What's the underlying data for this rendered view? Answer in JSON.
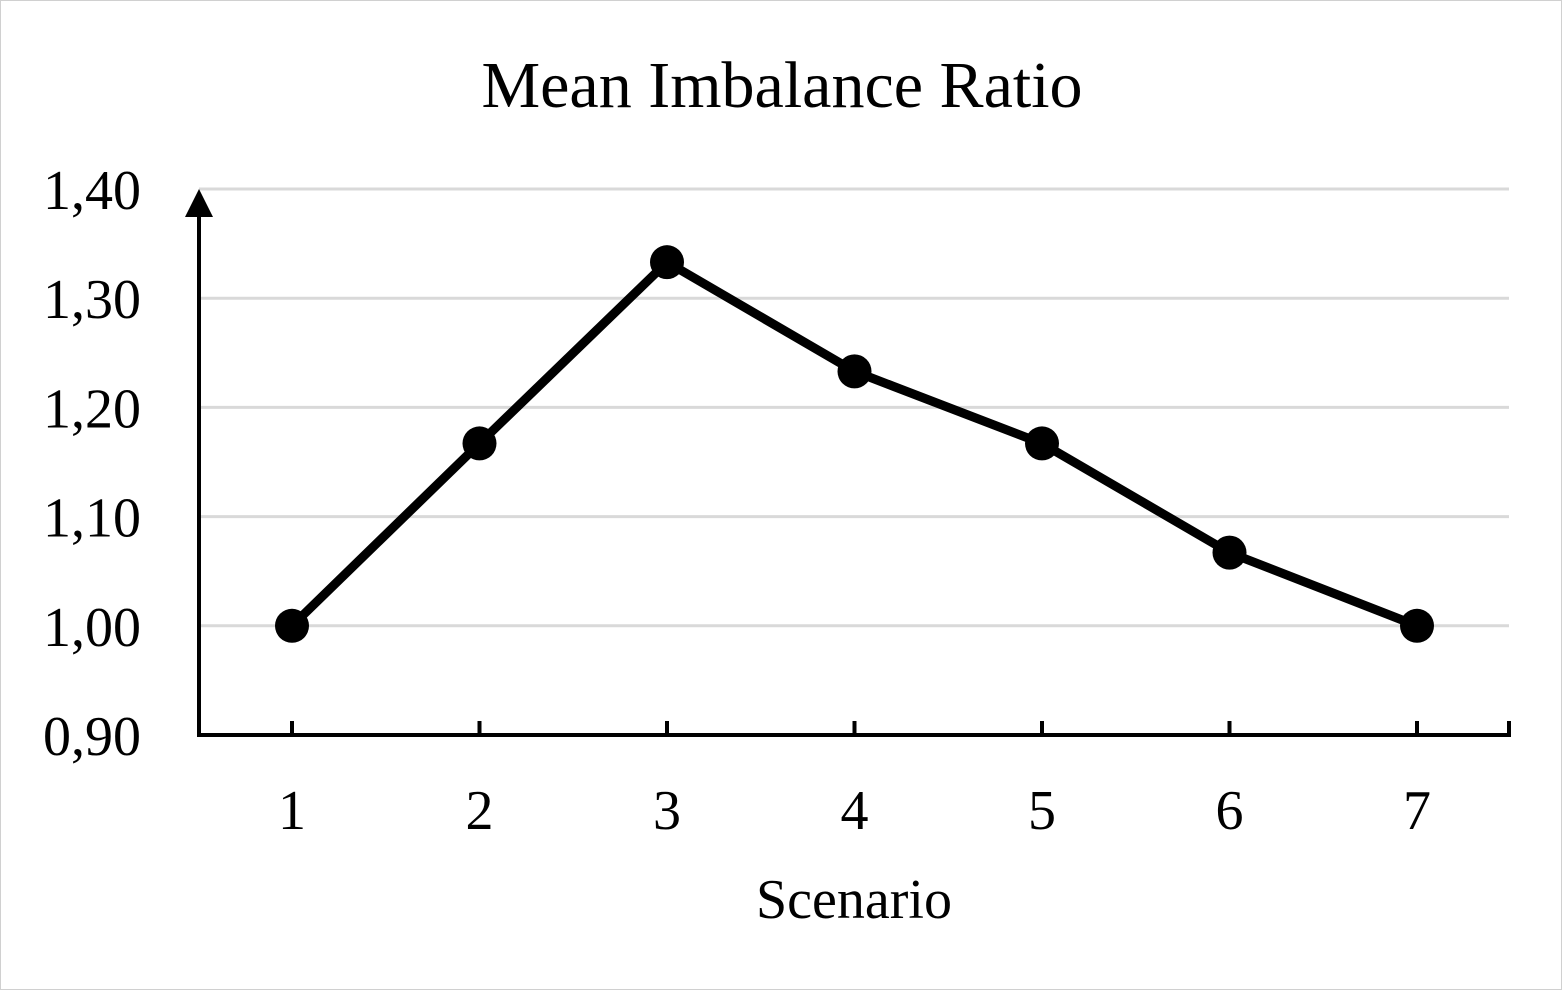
{
  "chart_data": {
    "type": "line",
    "title": "Mean Imbalance Ratio",
    "xlabel": "Scenario",
    "ylabel": "",
    "categories": [
      "1",
      "2",
      "3",
      "4",
      "5",
      "6",
      "7"
    ],
    "series": [
      {
        "values": [
          1.0,
          1.167,
          1.333,
          1.233,
          1.167,
          1.067,
          1.0
        ]
      }
    ],
    "ylim": [
      0.9,
      1.4
    ],
    "yticks": [
      0.9,
      1.0,
      1.1,
      1.2,
      1.3,
      1.4
    ],
    "ytick_labels": [
      "0,90",
      "1,00",
      "1,10",
      "1,20",
      "1,30",
      "1,40"
    ],
    "grid": true,
    "line_color": "#000000",
    "grid_color": "#d9d9d9"
  }
}
